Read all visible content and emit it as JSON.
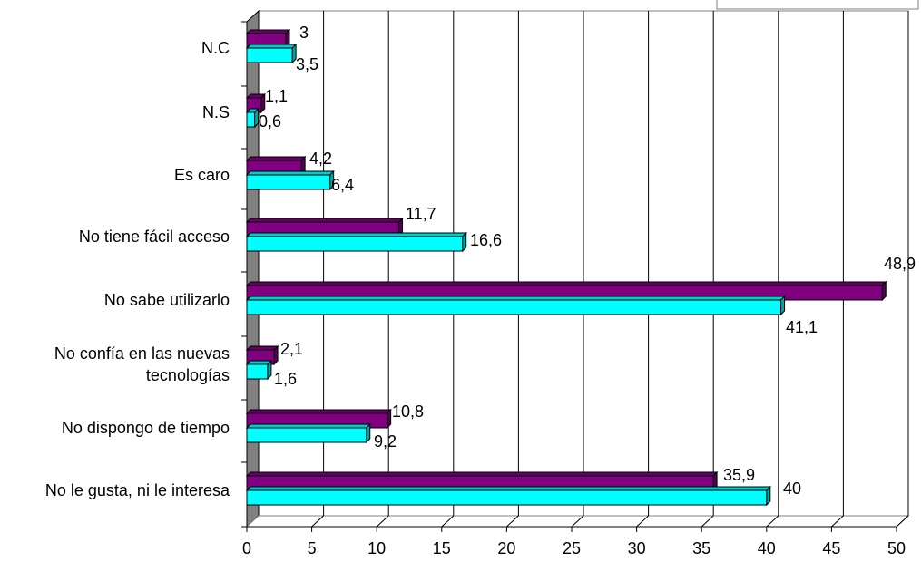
{
  "chart_data": {
    "type": "bar",
    "orientation": "horizontal",
    "three_d": true,
    "categories": [
      "N.C",
      "N.S",
      "Es caro",
      "No tiene fácil acceso",
      "No sabe utilizarlo",
      "No confía en las nuevas tecnologías",
      "No dispongo de tiempo",
      "No le gusta, ni le interesa"
    ],
    "category_lines": [
      [
        "N.C"
      ],
      [
        "N.S"
      ],
      [
        "Es caro"
      ],
      [
        "No tiene fácil acceso"
      ],
      [
        "No sabe utilizarlo"
      ],
      [
        "No confía en las nuevas",
        "tecnologías"
      ],
      [
        "No dispongo de tiempo"
      ],
      [
        "No le gusta, ni le interesa"
      ]
    ],
    "series": [
      {
        "color": "#800080",
        "values": [
          3,
          1.1,
          4.2,
          11.7,
          48.9,
          2.1,
          10.8,
          35.9
        ],
        "labels": [
          "3",
          "1,1",
          "4,2",
          "11,7",
          "48,9",
          "2,1",
          "10,8",
          "35,9"
        ]
      },
      {
        "color": "#00FFFF",
        "values": [
          3.5,
          0.6,
          6.4,
          16.6,
          41.1,
          1.6,
          9.2,
          40
        ],
        "labels": [
          "3,5",
          "0,6",
          "6,4",
          "16,6",
          "41,1",
          "1,6",
          "9,2",
          "40"
        ]
      }
    ],
    "xlim": [
      0,
      50
    ],
    "xticks": [
      "0",
      "5",
      "10",
      "15",
      "20",
      "25",
      "30",
      "35",
      "40",
      "45",
      "50"
    ],
    "grid": true,
    "legend": "top-right (partially cut off)",
    "title": "",
    "xlabel": "",
    "ylabel": ""
  }
}
